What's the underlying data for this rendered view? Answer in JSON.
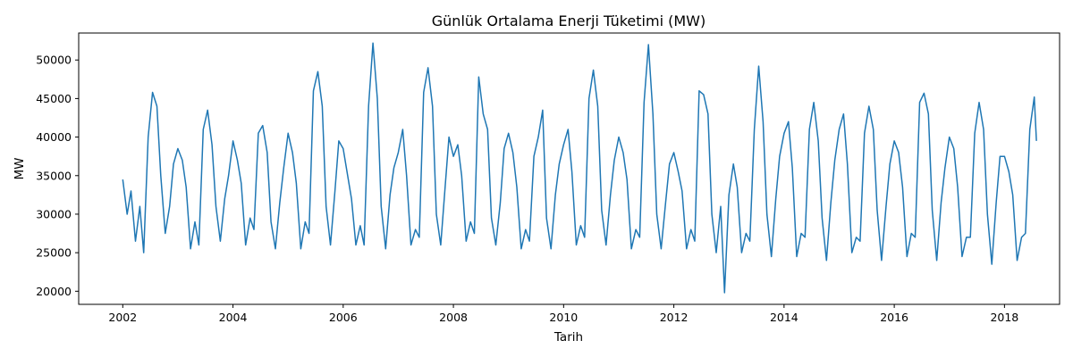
{
  "chart_data": {
    "type": "line",
    "title": "Günlük Ortalama Enerji Tüketimi (MW)",
    "xlabel": "Tarih",
    "ylabel": "MW",
    "xlim": [
      2001.2,
      2019.0
    ],
    "ylim": [
      18300,
      53500
    ],
    "x_ticks": [
      2002,
      2004,
      2006,
      2008,
      2010,
      2012,
      2014,
      2016,
      2018
    ],
    "y_ticks": [
      20000,
      25000,
      30000,
      35000,
      40000,
      45000,
      50000
    ],
    "grid": false,
    "legend": "none",
    "line_color": "#1f77b4",
    "series": [
      {
        "x": [
          2002.0,
          2002.08,
          2002.15,
          2002.23,
          2002.31,
          2002.38,
          2002.46,
          2002.54,
          2002.62,
          2002.69,
          2002.77,
          2002.85,
          2002.92,
          2003.0,
          2003.08,
          2003.15,
          2003.23,
          2003.31,
          2003.38,
          2003.46,
          2003.54,
          2003.62,
          2003.69,
          2003.77,
          2003.85,
          2003.92,
          2004.0,
          2004.08,
          2004.15,
          2004.23,
          2004.31,
          2004.38,
          2004.46,
          2004.54,
          2004.62,
          2004.69,
          2004.77,
          2004.85,
          2004.92,
          2005.0,
          2005.08,
          2005.15,
          2005.23,
          2005.31,
          2005.38,
          2005.46,
          2005.54,
          2005.62,
          2005.69,
          2005.77,
          2005.85,
          2005.92,
          2006.0,
          2006.08,
          2006.15,
          2006.23,
          2006.31,
          2006.38,
          2006.46,
          2006.54,
          2006.62,
          2006.69,
          2006.77,
          2006.85,
          2006.92,
          2007.0,
          2007.08,
          2007.15,
          2007.23,
          2007.31,
          2007.38,
          2007.46,
          2007.54,
          2007.62,
          2007.69,
          2007.77,
          2007.85,
          2007.92,
          2008.0,
          2008.08,
          2008.15,
          2008.23,
          2008.31,
          2008.38,
          2008.46,
          2008.54,
          2008.62,
          2008.69,
          2008.77,
          2008.85,
          2008.92,
          2009.0,
          2009.08,
          2009.15,
          2009.23,
          2009.31,
          2009.38,
          2009.46,
          2009.54,
          2009.62,
          2009.69,
          2009.77,
          2009.85,
          2009.92,
          2010.0,
          2010.08,
          2010.15,
          2010.23,
          2010.31,
          2010.38,
          2010.46,
          2010.54,
          2010.62,
          2010.69,
          2010.77,
          2010.85,
          2010.92,
          2011.0,
          2011.08,
          2011.15,
          2011.23,
          2011.31,
          2011.38,
          2011.46,
          2011.54,
          2011.62,
          2011.69,
          2011.77,
          2011.85,
          2011.92,
          2012.0,
          2012.08,
          2012.15,
          2012.23,
          2012.31,
          2012.38,
          2012.46,
          2012.54,
          2012.62,
          2012.69,
          2012.77,
          2012.85,
          2012.92,
          2013.0,
          2013.08,
          2013.15,
          2013.23,
          2013.31,
          2013.38,
          2013.46,
          2013.54,
          2013.62,
          2013.69,
          2013.77,
          2013.85,
          2013.92,
          2014.0,
          2014.08,
          2014.15,
          2014.23,
          2014.31,
          2014.38,
          2014.46,
          2014.54,
          2014.62,
          2014.69,
          2014.77,
          2014.85,
          2014.92,
          2015.0,
          2015.08,
          2015.15,
          2015.23,
          2015.31,
          2015.38,
          2015.46,
          2015.54,
          2015.62,
          2015.69,
          2015.77,
          2015.85,
          2015.92,
          2016.0,
          2016.08,
          2016.15,
          2016.23,
          2016.31,
          2016.38,
          2016.46,
          2016.54,
          2016.62,
          2016.69,
          2016.77,
          2016.85,
          2016.92,
          2017.0,
          2017.08,
          2017.15,
          2017.23,
          2017.31,
          2017.38,
          2017.46,
          2017.54,
          2017.62,
          2017.69,
          2017.77,
          2017.85,
          2017.92,
          2018.0,
          2018.08,
          2018.15,
          2018.23,
          2018.31,
          2018.38,
          2018.46,
          2018.54,
          2018.58
        ],
        "y": [
          34500,
          30000,
          33000,
          26500,
          31000,
          25000,
          40000,
          45800,
          44000,
          35000,
          27500,
          31000,
          36500,
          38500,
          37000,
          33500,
          25500,
          29000,
          26000,
          41000,
          43500,
          39000,
          31000,
          26500,
          32000,
          35000,
          39500,
          37000,
          34000,
          26000,
          29500,
          28000,
          40500,
          41500,
          38000,
          29000,
          25500,
          31500,
          36000,
          40500,
          38000,
          34000,
          25500,
          29000,
          27500,
          46000,
          48500,
          44000,
          31000,
          26000,
          33000,
          39500,
          38500,
          35000,
          32000,
          26000,
          28500,
          26000,
          44000,
          52200,
          45000,
          31000,
          25500,
          32500,
          36000,
          38000,
          41000,
          35000,
          26000,
          28000,
          27000,
          45800,
          49000,
          44000,
          30000,
          26000,
          33500,
          40000,
          37500,
          39000,
          35000,
          26500,
          29000,
          27500,
          47800,
          43000,
          41000,
          29500,
          26000,
          31500,
          38500,
          40500,
          38000,
          33500,
          25500,
          28000,
          26500,
          37500,
          40000,
          43500,
          29500,
          25500,
          32500,
          36500,
          39000,
          41000,
          35500,
          26000,
          28500,
          27000,
          45000,
          48700,
          44000,
          30500,
          26000,
          32500,
          37000,
          40000,
          38000,
          34500,
          25500,
          28000,
          27000,
          44500,
          52000,
          43000,
          30000,
          25500,
          31500,
          36500,
          38000,
          35500,
          33000,
          25500,
          28000,
          26500,
          46000,
          45500,
          43000,
          30000,
          25000,
          31000,
          19800,
          32500,
          36500,
          33500,
          25000,
          27500,
          26500,
          41000,
          49200,
          42000,
          30000,
          24500,
          32000,
          37500,
          40500,
          42000,
          36000,
          24500,
          27500,
          27000,
          41000,
          44500,
          39500,
          29500,
          24000,
          31500,
          37000,
          41000,
          43000,
          36500,
          25000,
          27000,
          26500,
          40500,
          44000,
          41000,
          30500,
          24000,
          31000,
          36500,
          39500,
          38000,
          33500,
          24500,
          27500,
          27000,
          44500,
          45700,
          43000,
          30500,
          24000,
          31500,
          36000,
          40000,
          38500,
          33500,
          24500,
          27000,
          27000,
          40500,
          44500,
          41000,
          30000,
          23500,
          31500,
          37500,
          37500,
          35500,
          32500,
          24000,
          27000,
          27500,
          41000,
          45200,
          39500
        ]
      }
    ]
  }
}
